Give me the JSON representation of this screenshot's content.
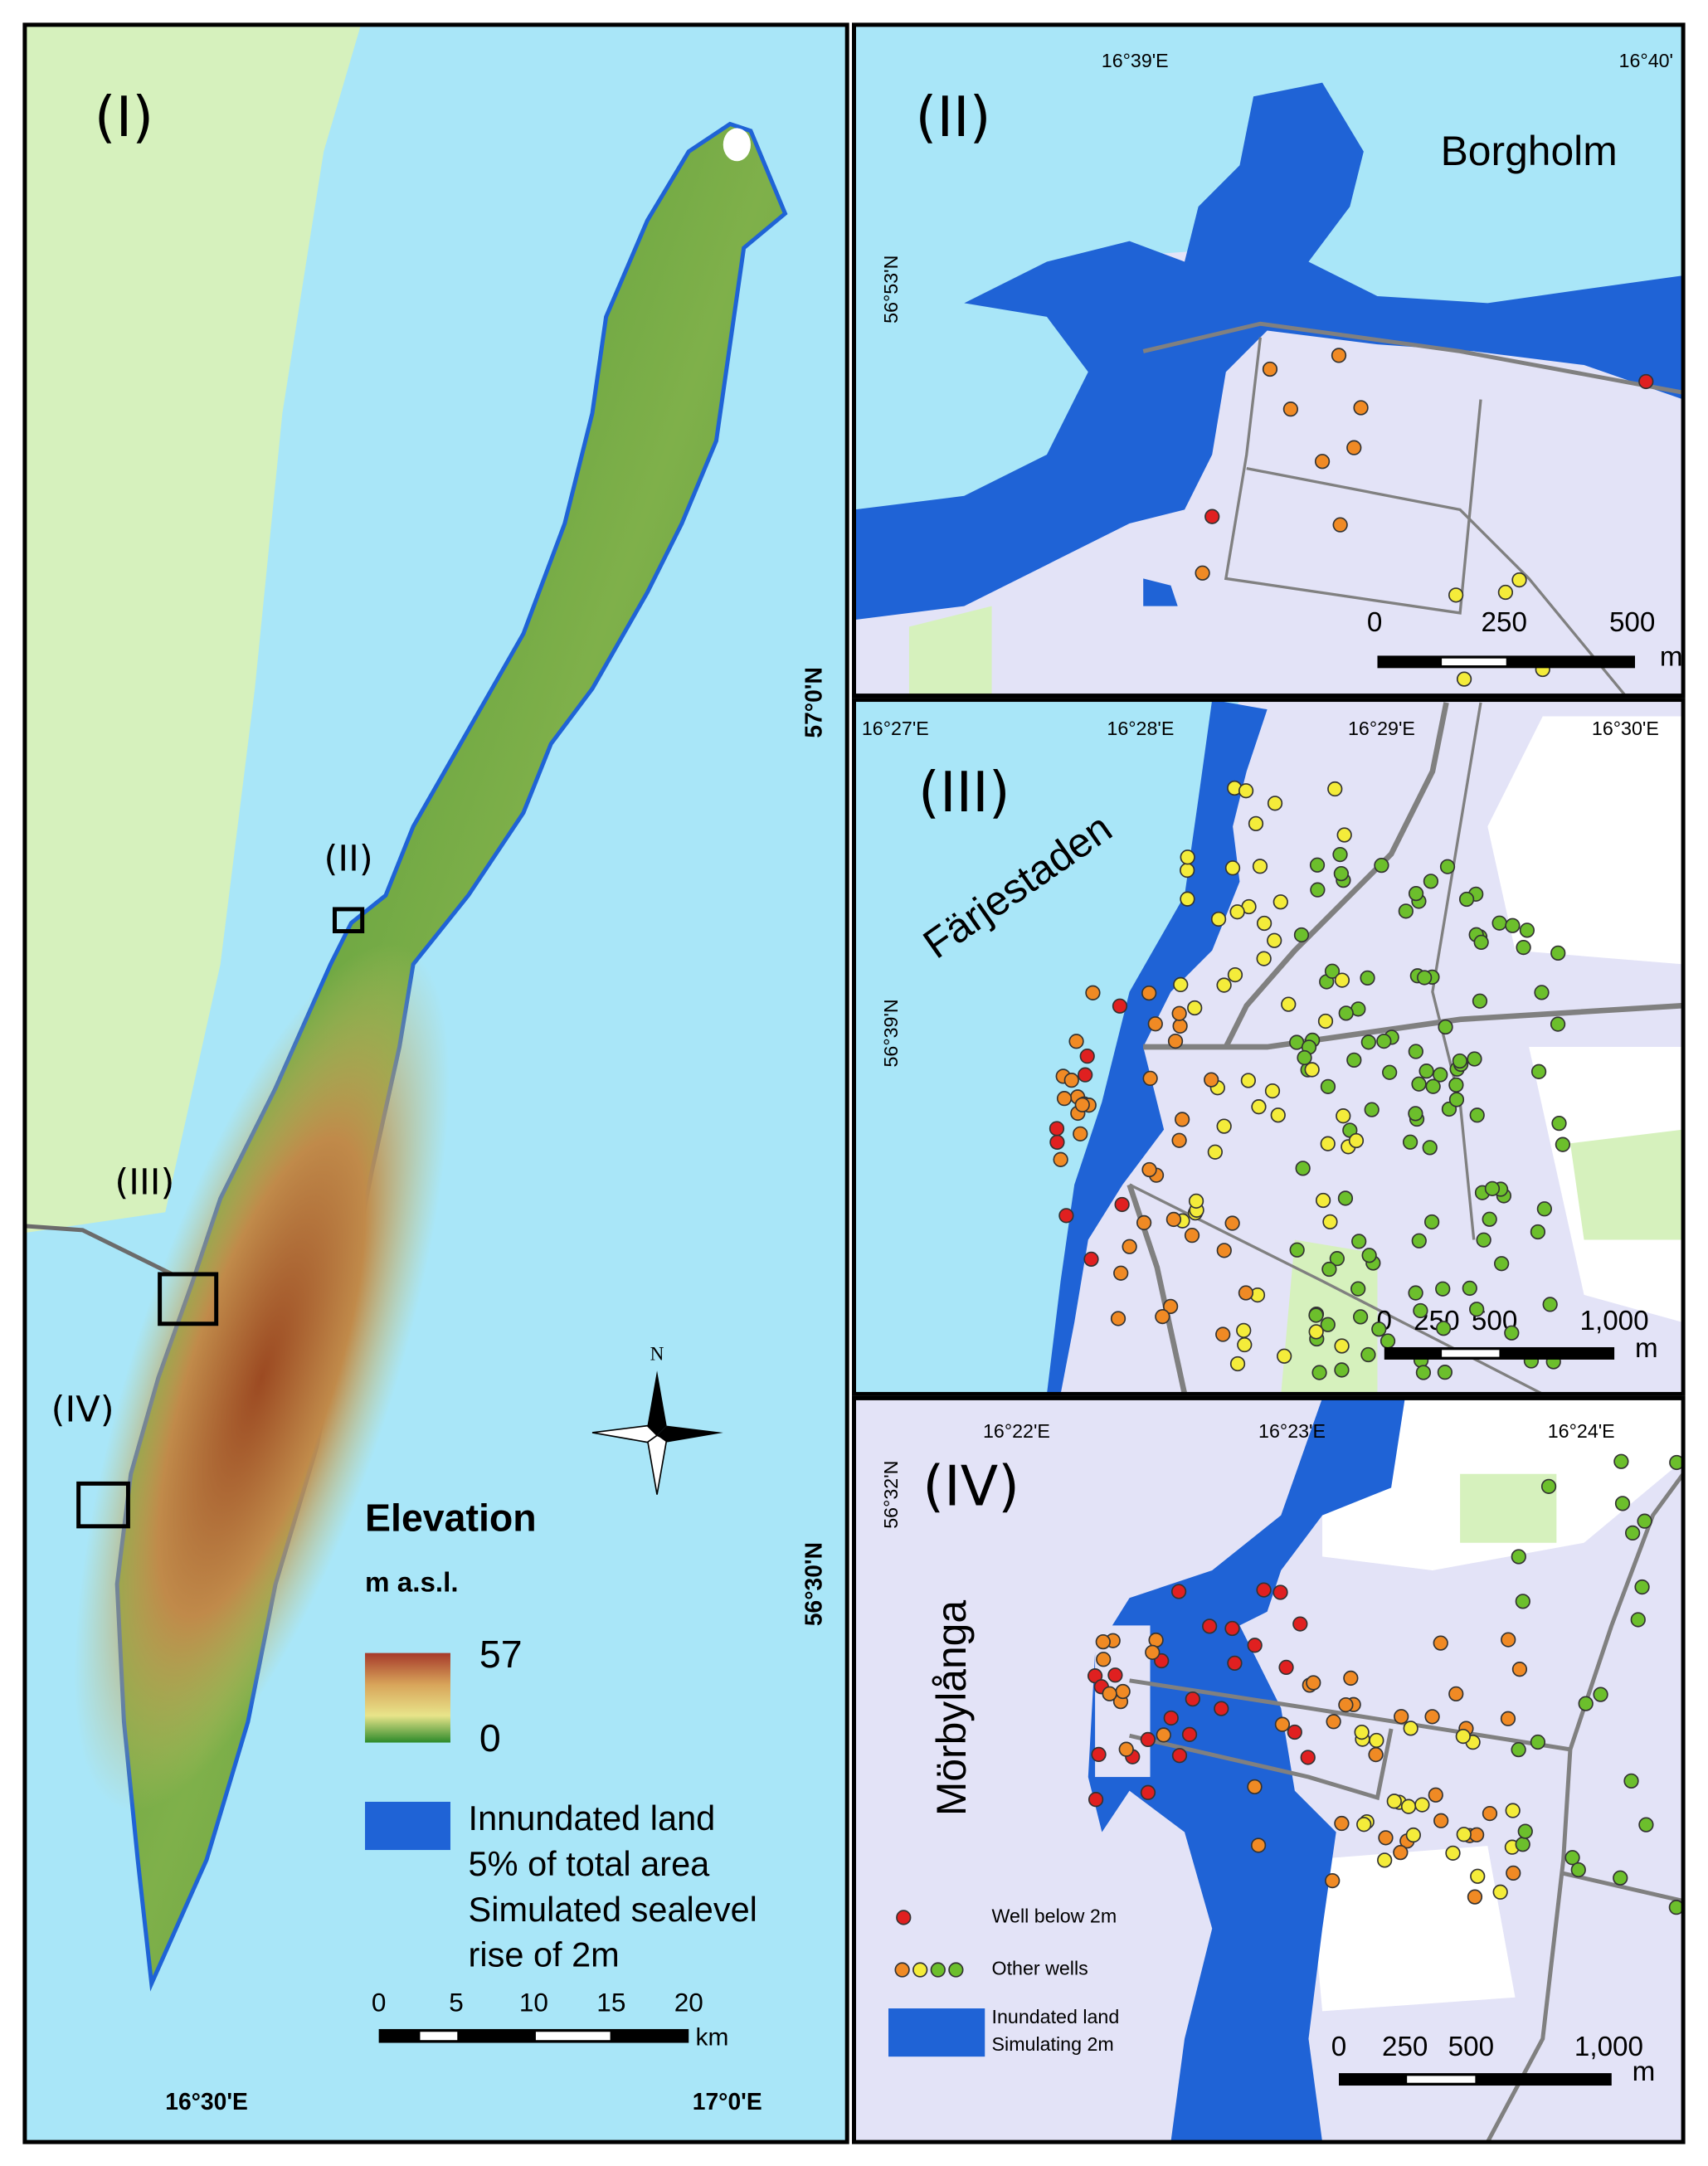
{
  "panel_1": {
    "label": "(I)",
    "inset_labels": [
      "(II)",
      "(III)",
      "(IV)"
    ],
    "x_coords": [
      "16°30'E",
      "17°0'E"
    ],
    "y_coords": [
      "57°0'N",
      "56°30'N"
    ],
    "north": "N",
    "legend": {
      "title": "Elevation",
      "unit": "m a.s.l.",
      "max": "57",
      "min": "0",
      "inundated": [
        "Innundated land",
        "5% of total area",
        "Simulated sealevel",
        "rise of 2m"
      ]
    },
    "scale": {
      "ticks": [
        "0",
        "5",
        "10",
        "15",
        "20"
      ],
      "unit": "km"
    }
  },
  "panel_2": {
    "label": "(II)",
    "place": "Borgholm",
    "x_coords": [
      "16°39'E",
      "16°40'"
    ],
    "y_coords": [
      "56°53'N"
    ],
    "scale": {
      "ticks": [
        "0",
        "250",
        "500"
      ],
      "unit": "m"
    }
  },
  "panel_3": {
    "label": "(III)",
    "place": "Färjestaden",
    "x_coords": [
      "16°27'E",
      "16°28'E",
      "16°29'E",
      "16°30'E"
    ],
    "y_coords": [
      "56°39'N"
    ],
    "scale": {
      "ticks": [
        "0",
        "250",
        "500",
        "1,000"
      ],
      "unit": "m"
    }
  },
  "panel_4": {
    "label": "(IV)",
    "place": "Mörbylånga",
    "x_coords": [
      "16°22'E",
      "16°23'E",
      "16°24'E"
    ],
    "y_coords": [
      "56°32'N"
    ],
    "scale": {
      "ticks": [
        "0",
        "250",
        "500",
        "1,000"
      ],
      "unit": "m"
    },
    "legend": {
      "well_below": "Well below 2m",
      "other_wells": "Other wells",
      "inundated": [
        "Inundated land",
        "Simulating 2m"
      ]
    }
  }
}
